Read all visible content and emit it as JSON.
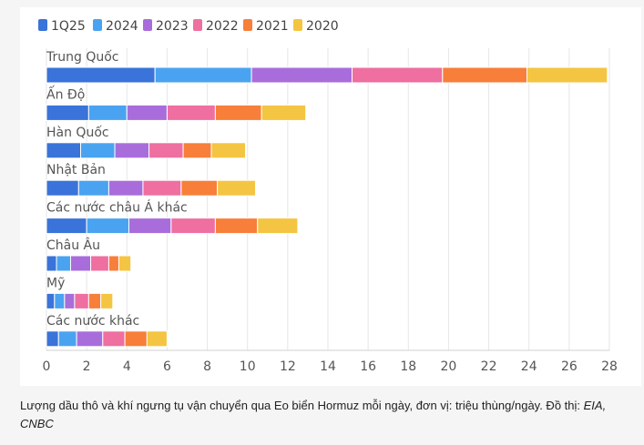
{
  "chart_data": {
    "type": "bar",
    "orientation": "horizontal",
    "stacked": true,
    "categories": [
      "Trung Quốc",
      "Ấn Độ",
      "Hàn Quốc",
      "Nhật Bản",
      "Các nước châu Á khác",
      "Châu Âu",
      "Mỹ",
      "Các nước khác"
    ],
    "series": [
      {
        "name": "1Q25",
        "color": "#3a73d9",
        "values": [
          5.4,
          2.1,
          1.7,
          1.6,
          2.0,
          0.5,
          0.4,
          0.6
        ]
      },
      {
        "name": "2024",
        "color": "#4aa3f0",
        "values": [
          4.8,
          1.9,
          1.7,
          1.5,
          2.1,
          0.7,
          0.5,
          0.9
        ]
      },
      {
        "name": "2023",
        "color": "#a86ddb",
        "values": [
          5.0,
          2.0,
          1.7,
          1.7,
          2.1,
          1.0,
          0.5,
          1.3
        ]
      },
      {
        "name": "2022",
        "color": "#ee6fa0",
        "values": [
          4.5,
          2.4,
          1.7,
          1.9,
          2.2,
          0.9,
          0.7,
          1.1
        ]
      },
      {
        "name": "2021",
        "color": "#f77f3a",
        "values": [
          4.2,
          2.3,
          1.4,
          1.8,
          2.1,
          0.5,
          0.6,
          1.1
        ]
      },
      {
        "name": "2020",
        "color": "#f4c542",
        "values": [
          4.0,
          2.2,
          1.7,
          1.9,
          2.0,
          0.6,
          0.6,
          1.0
        ]
      }
    ],
    "xlim": [
      0,
      28
    ],
    "xticks": [
      0,
      2,
      4,
      6,
      8,
      10,
      12,
      14,
      16,
      18,
      20,
      22,
      24,
      26,
      28
    ],
    "grid": true,
    "legend_position": "top-left"
  },
  "caption": {
    "text": "Lượng dầu thô và khí ngưng tụ vận chuyển qua Eo biển Hormuz mỗi ngày, đơn vị: triệu thùng/ngày. Đồ thị:",
    "source": "EIA, CNBC"
  }
}
